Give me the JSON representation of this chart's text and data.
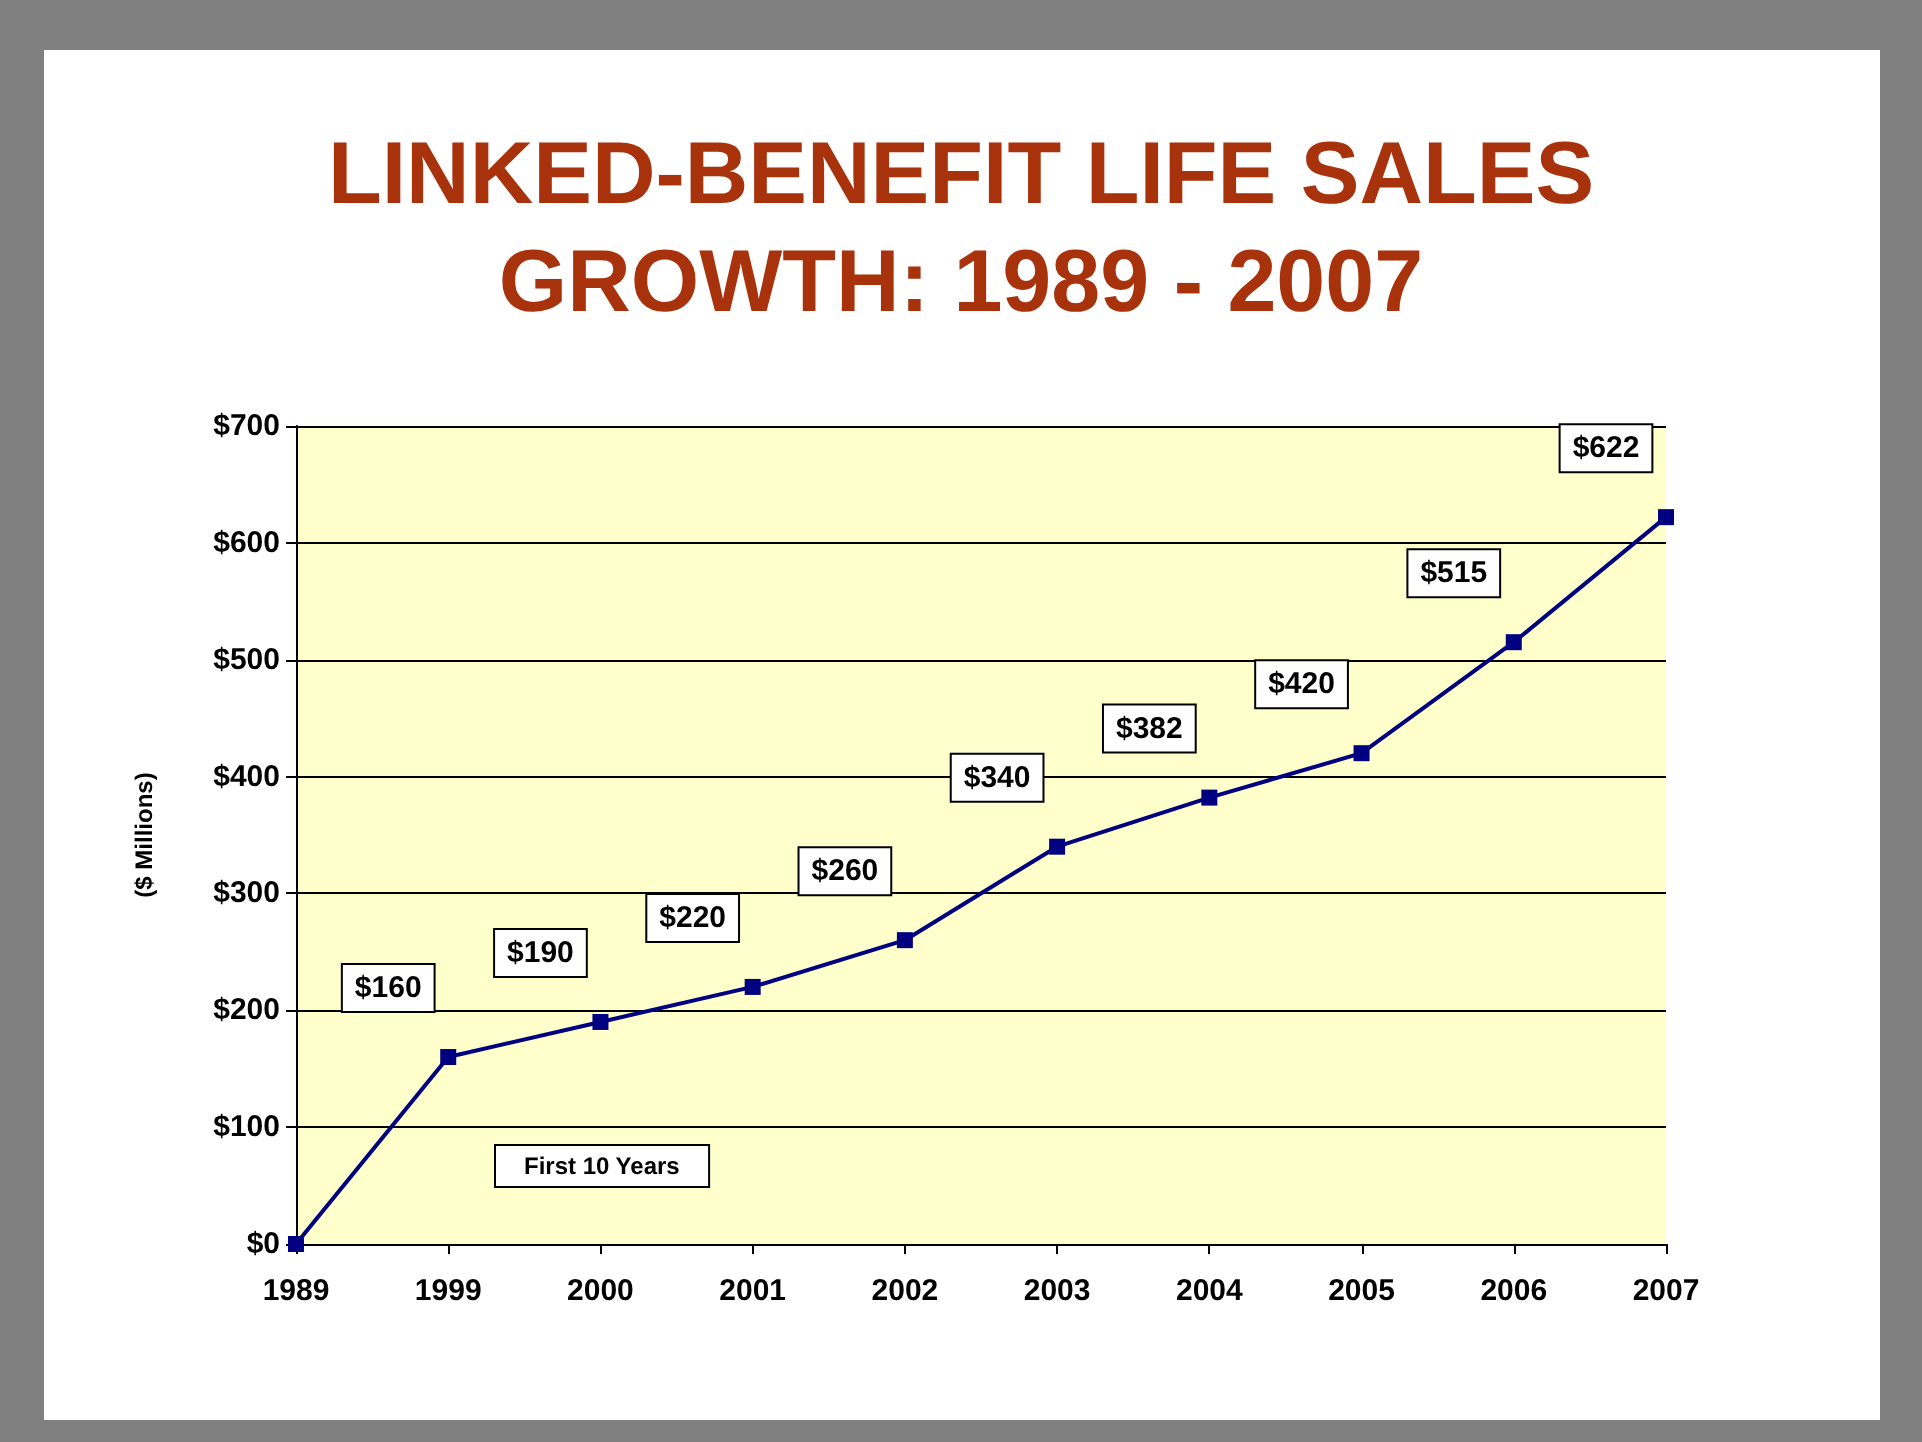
{
  "chart_data": {
    "type": "line",
    "title": "LINKED-BENEFIT LIFE SALES\nGROWTH: 1989 - 2007",
    "ylabel": "($ Millions)",
    "categories": [
      "1989",
      "1999",
      "2000",
      "2001",
      "2002",
      "2003",
      "2004",
      "2005",
      "2006",
      "2007"
    ],
    "series": [
      {
        "color": "#000080",
        "values": [
          0,
          160,
          190,
          220,
          260,
          340,
          382,
          420,
          515,
          622
        ],
        "value_labels": [
          null,
          "$160",
          "$190",
          "$220",
          "$260",
          "$340",
          "$382",
          "$420",
          "$515",
          "$622"
        ]
      }
    ],
    "ylim": [
      0,
      700
    ],
    "yticks": [
      {
        "value": 0,
        "label": "$0"
      },
      {
        "value": 100,
        "label": "$100"
      },
      {
        "value": 200,
        "label": "$200"
      },
      {
        "value": 300,
        "label": "$300"
      },
      {
        "value": 400,
        "label": "$400"
      },
      {
        "value": 500,
        "label": "$500"
      },
      {
        "value": 600,
        "label": "$600"
      },
      {
        "value": 700,
        "label": "$700"
      }
    ],
    "annotations": [
      "First 10 Years"
    ],
    "grid": "y",
    "marker": "square",
    "line_style": "solid"
  }
}
